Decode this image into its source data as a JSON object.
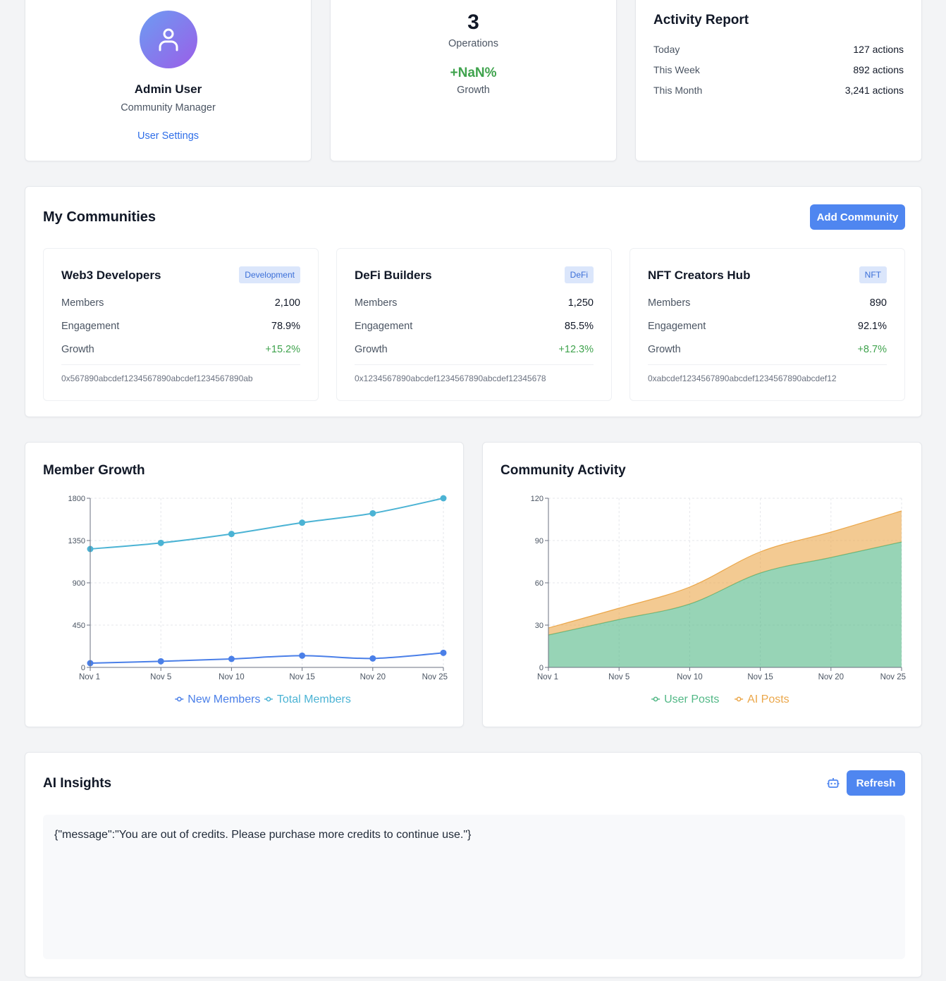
{
  "profile": {
    "name": "Admin User",
    "role": "Community Manager",
    "settings_link": "User Settings",
    "avatar_icon": "user-icon"
  },
  "stats": {
    "value": "3",
    "label": "Operations",
    "growth": "+NaN%",
    "growth_label": "Growth"
  },
  "activity": {
    "title": "Activity Report",
    "rows": [
      {
        "label": "Today",
        "value": "127 actions"
      },
      {
        "label": "This Week",
        "value": "892 actions"
      },
      {
        "label": "This Month",
        "value": "3,241 actions"
      }
    ]
  },
  "communities": {
    "title": "My Communities",
    "add_button": "Add Community",
    "items": [
      {
        "name": "Web3 Developers",
        "tag": "Development",
        "members_label": "Members",
        "members": "2,100",
        "engagement_label": "Engagement",
        "engagement": "78.9%",
        "growth_label": "Growth",
        "growth": "+15.2%",
        "address": "0x567890abcdef1234567890abcdef1234567890ab"
      },
      {
        "name": "DeFi Builders",
        "tag": "DeFi",
        "members_label": "Members",
        "members": "1,250",
        "engagement_label": "Engagement",
        "engagement": "85.5%",
        "growth_label": "Growth",
        "growth": "+12.3%",
        "address": "0x1234567890abcdef1234567890abcdef12345678"
      },
      {
        "name": "NFT Creators Hub",
        "tag": "NFT",
        "members_label": "Members",
        "members": "890",
        "engagement_label": "Engagement",
        "engagement": "92.1%",
        "growth_label": "Growth",
        "growth": "+8.7%",
        "address": "0xabcdef1234567890abcdef1234567890abcdef12"
      }
    ]
  },
  "charts": {
    "member_growth_title": "Member Growth",
    "community_activity_title": "Community Activity"
  },
  "chart_data": [
    {
      "type": "line",
      "categories": [
        "Nov 1",
        "Nov 5",
        "Nov 10",
        "Nov 15",
        "Nov 20",
        "Nov 25"
      ],
      "ylim": [
        0,
        1800
      ],
      "yticks": [
        "0",
        "450",
        "900",
        "1350",
        "1800"
      ],
      "grid": true,
      "legend": "bottom",
      "series": [
        {
          "name": "New Members",
          "color": "#4a7fe8",
          "values": [
            45,
            65,
            90,
            125,
            95,
            155
          ]
        },
        {
          "name": "Total Members",
          "color": "#4bb3d4",
          "values": [
            1260,
            1325,
            1420,
            1540,
            1640,
            1800
          ]
        }
      ]
    },
    {
      "type": "area",
      "stacked": true,
      "categories": [
        "Nov 1",
        "Nov 5",
        "Nov 10",
        "Nov 15",
        "Nov 20",
        "Nov 25"
      ],
      "ylim": [
        0,
        120
      ],
      "yticks": [
        "0",
        "30",
        "60",
        "90",
        "120"
      ],
      "grid": true,
      "legend": "bottom",
      "series": [
        {
          "name": "User Posts",
          "color": "#52b886",
          "values": [
            23,
            34,
            45,
            67,
            78,
            89
          ]
        },
        {
          "name": "AI Posts",
          "color": "#eba74a",
          "values": [
            5,
            8,
            12,
            15,
            18,
            22
          ]
        }
      ]
    }
  ],
  "insights": {
    "title": "AI Insights",
    "refresh": "Refresh",
    "icon": "robot-icon",
    "message": "{\"message\":\"You are out of credits. Please purchase more credits to continue use.\"}"
  }
}
